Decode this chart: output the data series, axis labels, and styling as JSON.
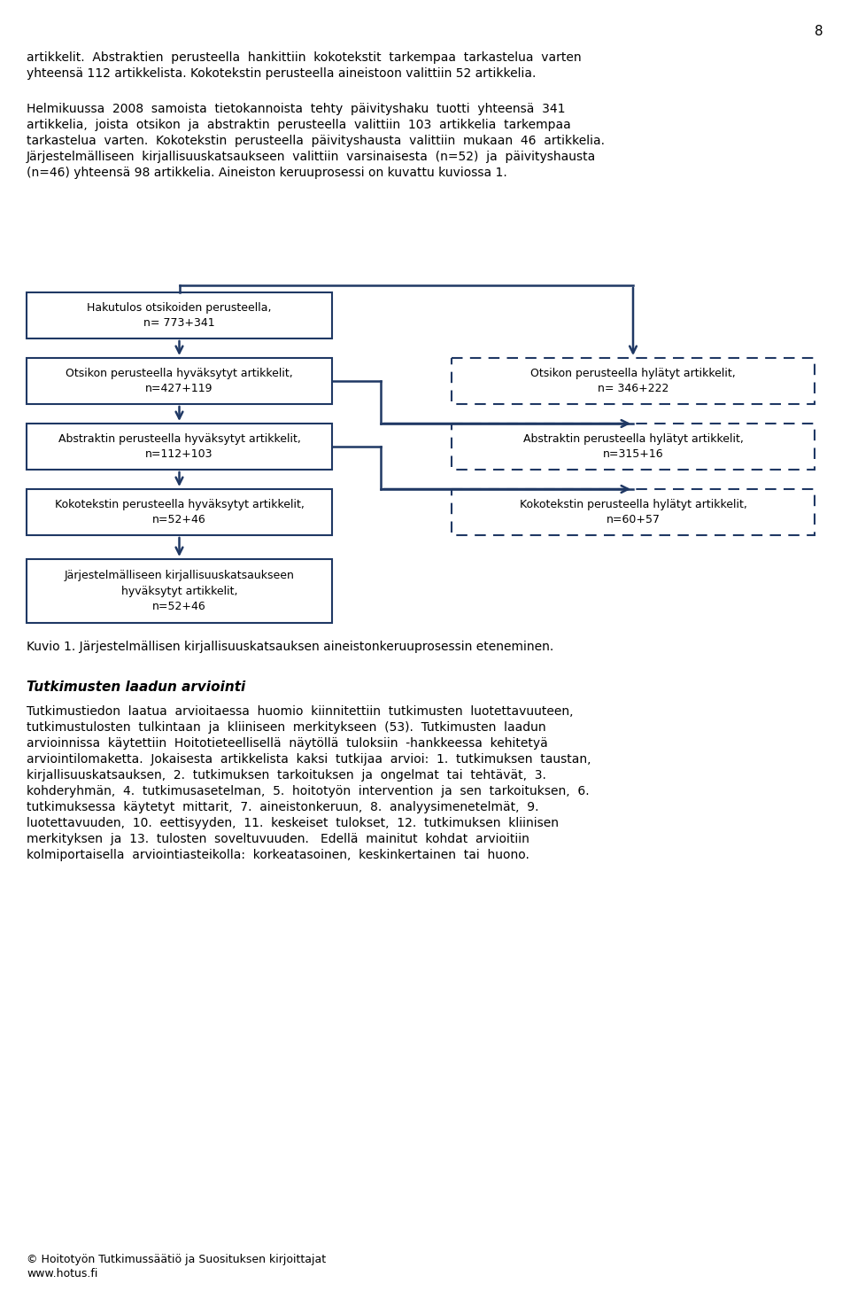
{
  "page_number": "8",
  "background_color": "#ffffff",
  "text_color": "#000000",
  "arrow_color": "#1f3864",
  "box_border_color": "#1f3864",
  "intro_text_1_line1": "artikkelit.  Abstraktien  perusteella  hankittiin  kokotekstit  tarkempaa  tarkastelua  varten",
  "intro_text_1_line2": "yhteensä 112 artikkelista. Kokotekstin perusteella aineistoon valittiin 52 artikkelia.",
  "intro_text_2_lines": [
    "Helmikuussa  2008  samoista  tietokannoista  tehty  päivityshaku  tuotti  yhteensä  341",
    "artikkelia,  joista  otsikon  ja  abstraktin  perusteella  valittiin  103  artikkelia  tarkempaa",
    "tarkastelua  varten.  Kokotekstin  perusteella  päivityshausta  valittiin  mukaan  46  artikkelia.",
    "Järjestelmälliseen  kirjallisuuskatsaukseen  valittiin  varsinaisesta  (n=52)  ja  päivityshausta",
    "(n=46) yhteensä 98 artikkelia. Aineiston keruuprosessi on kuvattu kuviossa 1."
  ],
  "caption": "Kuvio 1. Järjestelmällisen kirjallisuuskatsauksen aineistonkeruuprosessin eteneminen.",
  "section_title": "Tutkimusten laadun arviointi",
  "section_text_lines": [
    "Tutkimustiedon  laatua  arvioitaessa  huomio  kiinnitettiin  tutkimusten  luotettavuuteen,",
    "tutkimustulosten  tulkintaan  ja  kliiniseen  merkitykseen  (53).  Tutkimusten  laadun",
    "arvioinnissa  käytettiin  Hoitotieteellisellä  näytöllä  tuloksiin  -hankkeessa  kehitetyä",
    "arviointilomaketta.  Jokaisesta  artikkelista  kaksi  tutkijaa  arvioi:  1.  tutkimuksen  taustan,",
    "kirjallisuuskatsauksen,  2.  tutkimuksen  tarkoituksen  ja  ongelmat  tai  tehtävät,  3.",
    "kohderyhmän,  4.  tutkimusasetelman,  5.  hoitotyön  intervention  ja  sen  tarkoituksen,  6.",
    "tutkimuksessa  käytetyt  mittarit,  7.  aineistonkeruun,  8.  analyysimenetelmät,  9.",
    "luotettavuuden,  10.  eettisyyden,  11.  keskeiset  tulokset,  12.  tutkimuksen  kliinisen",
    "merkityksen  ja  13.  tulosten  soveltuvuuden.   Edellä  mainitut  kohdat  arvioitiin",
    "kolmiportaisella  arviointiasteikolla:  korkeatasoinen,  keskinkertainen  tai  huono."
  ],
  "footer_text_line1": "© Hoitotyön Tutkimussäätiö ja Suosituksen kirjoittajat",
  "footer_text_line2": "www.hotus.fi"
}
